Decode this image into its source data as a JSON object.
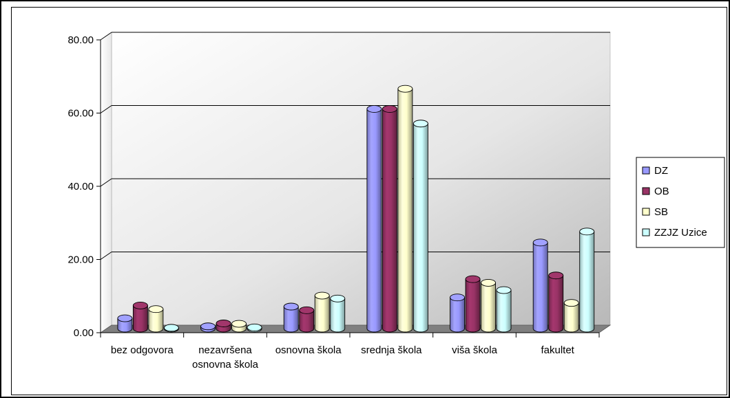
{
  "chart_data": {
    "type": "bar",
    "title": "",
    "xlabel": "",
    "ylabel": "",
    "ylim": [
      0,
      80
    ],
    "yticks": [
      "0.00",
      "20.00",
      "40.00",
      "60.00",
      "80.00"
    ],
    "categories": [
      [
        "bez odgovora"
      ],
      [
        "nezavršena",
        "osnovna škola"
      ],
      [
        "osnovna škola"
      ],
      [
        "srednja škola"
      ],
      [
        "viša škola"
      ],
      [
        "fakultet"
      ]
    ],
    "series": [
      {
        "name": "DZ",
        "color": "#9999ff",
        "values": [
          2.8,
          0.6,
          6.0,
          60.0,
          8.5,
          23.5
        ]
      },
      {
        "name": "OB",
        "color": "#993366",
        "values": [
          6.3,
          1.4,
          5.0,
          60.0,
          13.5,
          14.5
        ]
      },
      {
        "name": "SB",
        "color": "#ffffcc",
        "values": [
          5.3,
          1.3,
          9.0,
          65.5,
          12.5,
          7.0
        ]
      },
      {
        "name": "ZZJZ Uzice",
        "color": "#ccffff",
        "values": [
          0.2,
          0.3,
          8.2,
          56.0,
          10.5,
          26.5
        ]
      }
    ],
    "legend_position": "right",
    "grid": true,
    "style": "3d-cylinder"
  }
}
